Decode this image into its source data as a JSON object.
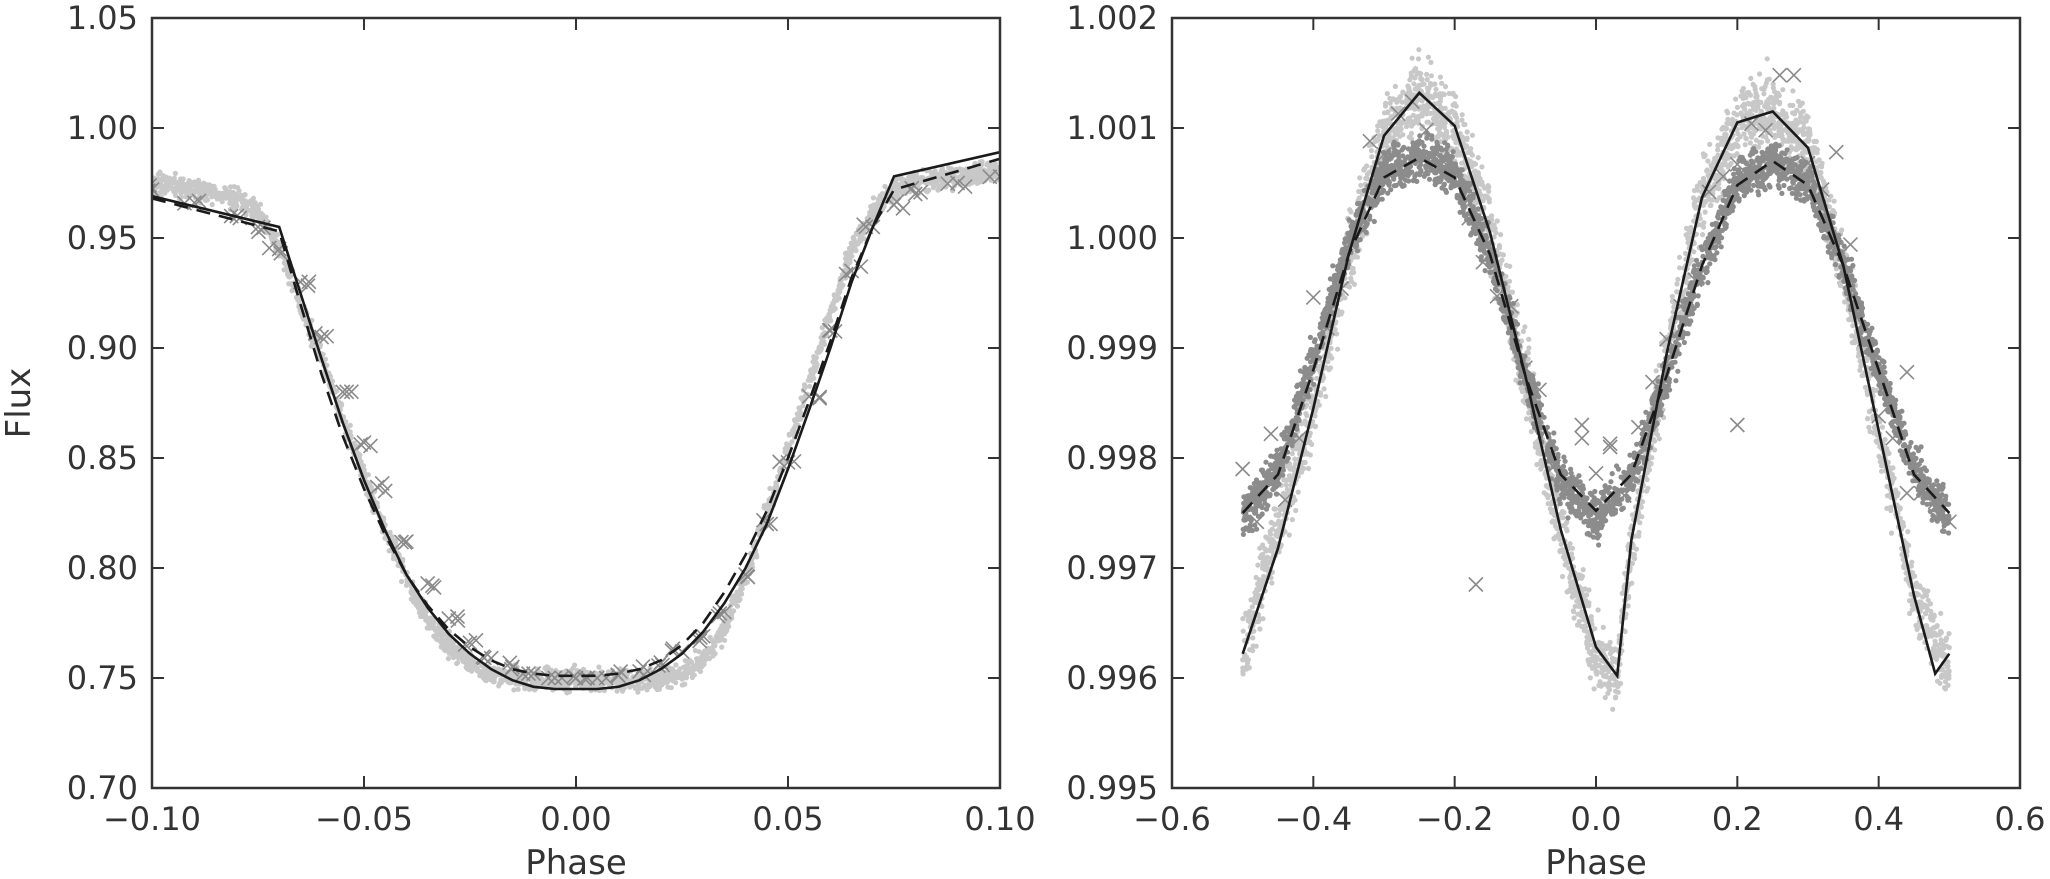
{
  "chart_data": [
    {
      "type": "scatter",
      "xlabel": "Phase",
      "ylabel": "Flux",
      "xlim": [
        -0.1,
        0.1
      ],
      "ylim": [
        0.7,
        1.05
      ],
      "xticks": [
        -0.1,
        -0.05,
        0.0,
        0.05,
        0.1
      ],
      "xtick_labels": [
        "−0.10",
        "−0.05",
        "0.00",
        "0.05",
        "0.10"
      ],
      "yticks": [
        0.7,
        0.75,
        0.8,
        0.85,
        0.9,
        0.95,
        1.0,
        1.05
      ],
      "ytick_labels": [
        "0.70",
        "0.75",
        "0.80",
        "0.85",
        "0.90",
        "0.95",
        "1.00",
        "1.05"
      ],
      "grid": false,
      "colors": {
        "light_points": "#c8c8c8",
        "binned_crosses": "#8a8a8a",
        "model_line": "#1a1a1a"
      },
      "series": [
        {
          "style": "light-gray-points",
          "x": [
            -0.1,
            -0.09,
            -0.08,
            -0.075,
            -0.07,
            -0.065,
            -0.06,
            -0.055,
            -0.05,
            -0.045,
            -0.04,
            -0.035,
            -0.03,
            -0.025,
            -0.02,
            -0.015,
            -0.01,
            -0.005,
            0.0,
            0.005,
            0.01,
            0.015,
            0.02,
            0.025,
            0.03,
            0.035,
            0.04,
            0.045,
            0.05,
            0.055,
            0.06,
            0.065,
            0.07,
            0.075,
            0.08,
            0.09,
            0.1
          ],
          "y": [
            0.975,
            0.972,
            0.968,
            0.962,
            0.945,
            0.92,
            0.895,
            0.868,
            0.842,
            0.817,
            0.795,
            0.777,
            0.765,
            0.757,
            0.752,
            0.75,
            0.749,
            0.749,
            0.749,
            0.749,
            0.749,
            0.749,
            0.75,
            0.752,
            0.758,
            0.772,
            0.795,
            0.825,
            0.855,
            0.885,
            0.915,
            0.945,
            0.962,
            0.972,
            0.976,
            0.978,
            0.98
          ]
        },
        {
          "style": "gray-crosses",
          "x": [
            -0.1,
            -0.09,
            -0.08,
            -0.075,
            -0.07,
            -0.065,
            -0.06,
            -0.055,
            -0.05,
            -0.045,
            -0.04,
            -0.035,
            -0.03,
            -0.025,
            -0.02,
            -0.015,
            -0.01,
            -0.005,
            0.0,
            0.005,
            0.01,
            0.015,
            0.02,
            0.025,
            0.03,
            0.035,
            0.04,
            0.045,
            0.05,
            0.055,
            0.06,
            0.065,
            0.07,
            0.075,
            0.08,
            0.09,
            0.1
          ],
          "y": [
            0.972,
            0.966,
            0.96,
            0.955,
            0.945,
            0.93,
            0.905,
            0.88,
            0.857,
            0.835,
            0.812,
            0.793,
            0.777,
            0.766,
            0.759,
            0.755,
            0.752,
            0.75,
            0.75,
            0.75,
            0.751,
            0.753,
            0.757,
            0.762,
            0.769,
            0.78,
            0.797,
            0.82,
            0.848,
            0.878,
            0.908,
            0.935,
            0.955,
            0.965,
            0.97,
            0.975,
            0.978
          ]
        },
        {
          "style": "solid-line",
          "x": [
            -0.1,
            -0.07,
            -0.065,
            -0.06,
            -0.055,
            -0.05,
            -0.045,
            -0.04,
            -0.035,
            -0.03,
            -0.025,
            -0.02,
            -0.015,
            -0.01,
            -0.005,
            0.0,
            0.005,
            0.01,
            0.015,
            0.02,
            0.025,
            0.03,
            0.035,
            0.04,
            0.045,
            0.05,
            0.055,
            0.06,
            0.065,
            0.07,
            0.075,
            0.1
          ],
          "y": [
            0.969,
            0.955,
            0.925,
            0.895,
            0.866,
            0.84,
            0.817,
            0.797,
            0.782,
            0.77,
            0.761,
            0.754,
            0.749,
            0.746,
            0.745,
            0.745,
            0.745,
            0.746,
            0.749,
            0.754,
            0.761,
            0.771,
            0.784,
            0.8,
            0.82,
            0.845,
            0.872,
            0.9,
            0.93,
            0.955,
            0.978,
            0.989
          ]
        },
        {
          "style": "dashed-line",
          "x": [
            -0.1,
            -0.07,
            -0.065,
            -0.06,
            -0.055,
            -0.05,
            -0.045,
            -0.04,
            -0.035,
            -0.03,
            -0.025,
            -0.02,
            -0.015,
            -0.01,
            -0.005,
            0.0,
            0.005,
            0.01,
            0.015,
            0.02,
            0.025,
            0.03,
            0.035,
            0.04,
            0.045,
            0.05,
            0.055,
            0.06,
            0.065,
            0.07,
            0.075,
            0.1
          ],
          "y": [
            0.968,
            0.953,
            0.92,
            0.888,
            0.86,
            0.836,
            0.815,
            0.797,
            0.783,
            0.772,
            0.764,
            0.758,
            0.754,
            0.752,
            0.751,
            0.751,
            0.751,
            0.752,
            0.754,
            0.758,
            0.765,
            0.775,
            0.789,
            0.806,
            0.826,
            0.85,
            0.876,
            0.903,
            0.932,
            0.955,
            0.972,
            0.986
          ]
        }
      ]
    },
    {
      "type": "scatter",
      "xlabel": "Phase",
      "ylabel": "",
      "xlim": [
        -0.6,
        0.6
      ],
      "ylim": [
        0.995,
        1.002
      ],
      "xticks": [
        -0.6,
        -0.4,
        -0.2,
        0.0,
        0.2,
        0.4,
        0.6
      ],
      "xtick_labels": [
        "−0.6",
        "−0.4",
        "−0.2",
        "0.0",
        "0.2",
        "0.4",
        "0.6"
      ],
      "yticks": [
        0.995,
        0.996,
        0.997,
        0.998,
        0.999,
        1.0,
        1.001,
        1.002
      ],
      "ytick_labels": [
        "0.995",
        "0.996",
        "0.997",
        "0.998",
        "0.999",
        "1.000",
        "1.001",
        "1.002"
      ],
      "grid": false,
      "colors": {
        "light_band": "#c8c8c8",
        "dark_band": "#8c8c8c",
        "crosses": "#8a8a8a",
        "model_line": "#1a1a1a"
      },
      "series": [
        {
          "style": "light-gray-band",
          "x": [
            -0.5,
            -0.45,
            -0.4,
            -0.35,
            -0.3,
            -0.25,
            -0.2,
            -0.15,
            -0.1,
            -0.05,
            0.0,
            0.03,
            0.05,
            0.1,
            0.15,
            0.2,
            0.25,
            0.3,
            0.35,
            0.4,
            0.45,
            0.5
          ],
          "y": [
            0.99625,
            0.99735,
            0.99845,
            0.99985,
            1.00093,
            1.00132,
            1.00102,
            1.0001,
            0.99875,
            0.99735,
            0.9962,
            0.996,
            0.99725,
            0.99895,
            1.00037,
            1.00105,
            1.00115,
            1.00082,
            0.99975,
            0.99825,
            0.99675,
            0.99605
          ],
          "spread": 0.0004
        },
        {
          "style": "dark-gray-band",
          "x": [
            -0.5,
            -0.45,
            -0.4,
            -0.35,
            -0.3,
            -0.25,
            -0.2,
            -0.15,
            -0.1,
            -0.05,
            0.0,
            0.05,
            0.1,
            0.15,
            0.2,
            0.25,
            0.3,
            0.35,
            0.4,
            0.45,
            0.5
          ],
          "y": [
            0.99745,
            0.9979,
            0.9989,
            0.99995,
            1.0006,
            1.00075,
            1.0006,
            0.99985,
            0.99875,
            0.9978,
            0.99745,
            0.9978,
            0.99875,
            0.99975,
            1.0005,
            1.0007,
            1.0005,
            0.99975,
            0.9988,
            0.9979,
            0.99745
          ],
          "spread": 0.00025
        },
        {
          "style": "gray-crosses",
          "x": [
            -0.5,
            -0.48,
            -0.46,
            -0.44,
            -0.42,
            -0.4,
            -0.38,
            -0.36,
            -0.34,
            -0.32,
            -0.3,
            -0.28,
            -0.26,
            -0.24,
            -0.22,
            -0.2,
            -0.18,
            -0.16,
            -0.14,
            -0.12,
            -0.1,
            -0.08,
            -0.06,
            -0.04,
            -0.02,
            0.0,
            0.02,
            0.04,
            0.06,
            0.08,
            0.1,
            0.12,
            0.14,
            0.16,
            0.18,
            0.2,
            0.22,
            0.24,
            0.26,
            0.28,
            0.3,
            0.32,
            0.34,
            0.36,
            0.38,
            0.4,
            0.42,
            0.44,
            0.46,
            0.48,
            0.5,
            -0.17,
            0.2,
            -0.02,
            0.02,
            0.44
          ],
          "y": [
            0.9979,
            0.99742,
            0.99822,
            0.99762,
            0.99818,
            0.99946,
            0.99918,
            0.99954,
            1.00012,
            1.00088,
            1.00076,
            1.00113,
            1.00124,
            1.00098,
            1.00072,
            1.00058,
            1.00018,
            0.99978,
            0.99947,
            0.99938,
            0.99882,
            0.99862,
            0.99792,
            0.99778,
            0.99818,
            0.99786,
            0.99813,
            0.99766,
            0.99828,
            0.99869,
            0.99908,
            0.99938,
            0.99962,
            1.00042,
            1.00056,
            1.00067,
            1.00104,
            1.00098,
            1.00148,
            1.00148,
            1.00068,
            1.00044,
            1.00078,
            0.99994,
            0.99908,
            0.99838,
            0.99818,
            0.99768,
            0.99768,
            0.9976,
            0.99742,
            0.99685,
            0.9983,
            0.9983,
            0.9981,
            0.99878
          ]
        },
        {
          "style": "solid-line",
          "x": [
            -0.5,
            -0.45,
            -0.4,
            -0.35,
            -0.3,
            -0.25,
            -0.2,
            -0.15,
            -0.1,
            -0.05,
            0.0,
            0.03,
            0.05,
            0.1,
            0.15,
            0.2,
            0.25,
            0.3,
            0.35,
            0.4,
            0.45,
            0.48,
            0.5
          ],
          "y": [
            0.99622,
            0.99718,
            0.99845,
            0.99985,
            1.00093,
            1.00132,
            1.00102,
            1.00005,
            0.99875,
            0.99735,
            0.99628,
            0.99602,
            0.99725,
            0.99895,
            1.00037,
            1.00105,
            1.00115,
            1.00082,
            0.99975,
            0.99825,
            0.99675,
            0.99604,
            0.99622
          ]
        },
        {
          "style": "dashed-line",
          "x": [
            -0.5,
            -0.45,
            -0.4,
            -0.35,
            -0.3,
            -0.25,
            -0.2,
            -0.15,
            -0.1,
            -0.05,
            0.0,
            0.05,
            0.1,
            0.15,
            0.2,
            0.25,
            0.3,
            0.35,
            0.4,
            0.45,
            0.5
          ],
          "y": [
            0.9975,
            0.99785,
            0.9988,
            0.99985,
            1.00055,
            1.00073,
            1.00055,
            0.99985,
            0.99875,
            0.99785,
            0.99752,
            0.99785,
            0.99875,
            0.99975,
            1.00048,
            1.0007,
            1.00048,
            0.99975,
            0.9988,
            0.99785,
            0.9975
          ]
        }
      ]
    }
  ]
}
